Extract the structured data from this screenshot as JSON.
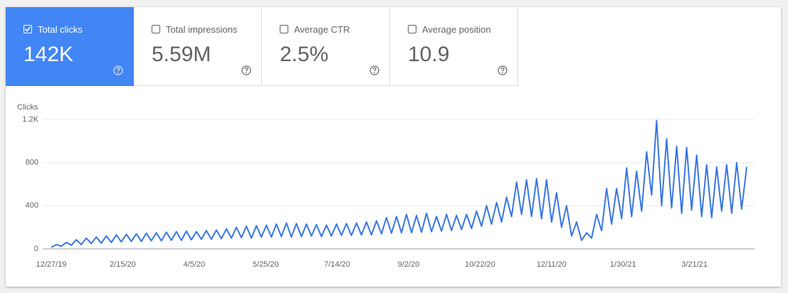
{
  "metrics": [
    {
      "label": "Total clicks",
      "value": "142K",
      "selected": true,
      "color": "#4285f4"
    },
    {
      "label": "Total impressions",
      "value": "5.59M",
      "selected": false
    },
    {
      "label": "Average CTR",
      "value": "2.5%",
      "selected": false
    },
    {
      "label": "Average position",
      "value": "10.9",
      "selected": false
    }
  ],
  "chart_data": {
    "type": "line",
    "ylabel": "Clicks",
    "color": "#3a76e0",
    "grid": true,
    "x": [
      0,
      3.5,
      7,
      10.5,
      14,
      17.5,
      21,
      24.5,
      28,
      31.5,
      35,
      38.5,
      42,
      45.5,
      49,
      52.5,
      56,
      59.5,
      63,
      66.5,
      70,
      73.5,
      77,
      80.5,
      84,
      87.5,
      91,
      94.5,
      98,
      101.5,
      105,
      108.5,
      112,
      115.5,
      119,
      122.5,
      126,
      129.5,
      133,
      136.5,
      140,
      143.5,
      147,
      150.5,
      154,
      157.5,
      161,
      164.5,
      168,
      171.5,
      175,
      178.5,
      182,
      185.5,
      189,
      192.5,
      196,
      199.5,
      203,
      206.5,
      210,
      213.5,
      217,
      220.5,
      224,
      227.5,
      231,
      234.5,
      238,
      241.5,
      245,
      248.5,
      252,
      255.5,
      259,
      262.5,
      266,
      269.5,
      273,
      276.5,
      280,
      283.5,
      287,
      290.5,
      294,
      297.5,
      301,
      304.5,
      308,
      311.5,
      315,
      318.5,
      322,
      325.5,
      329,
      332.5,
      336,
      339.5,
      343,
      346.5,
      350,
      353.5,
      357,
      360.5,
      364,
      367.5,
      371,
      374.5,
      378,
      381.5,
      385,
      388.5,
      392,
      395.5,
      399,
      402.5,
      406,
      409.5,
      413,
      416.5,
      420,
      423.5,
      427,
      430.5,
      434,
      437.5,
      441,
      444.5,
      448,
      451.5,
      455,
      458.5,
      462,
      465.5,
      469,
      472.5,
      476,
      479.5,
      483,
      486.5
    ],
    "values": [
      15,
      40,
      25,
      60,
      35,
      85,
      40,
      100,
      50,
      110,
      55,
      120,
      60,
      130,
      65,
      135,
      70,
      140,
      70,
      145,
      75,
      150,
      75,
      155,
      80,
      160,
      80,
      165,
      85,
      160,
      90,
      170,
      90,
      175,
      95,
      185,
      100,
      200,
      105,
      210,
      100,
      215,
      110,
      220,
      110,
      230,
      115,
      240,
      110,
      235,
      115,
      230,
      120,
      225,
      115,
      220,
      120,
      230,
      125,
      235,
      125,
      240,
      130,
      250,
      130,
      260,
      140,
      290,
      145,
      300,
      150,
      320,
      150,
      310,
      155,
      330,
      160,
      300,
      165,
      320,
      170,
      310,
      180,
      320,
      190,
      350,
      210,
      400,
      230,
      430,
      250,
      480,
      300,
      620,
      320,
      640,
      300,
      650,
      280,
      640,
      250,
      520,
      200,
      400,
      120,
      250,
      80,
      150,
      100,
      320,
      170,
      560,
      230,
      560,
      280,
      750,
      300,
      720,
      350,
      900,
      500,
      1190,
      400,
      1020,
      380,
      950,
      330,
      940,
      360,
      870,
      300,
      780,
      290,
      760,
      350,
      780,
      330,
      800,
      370,
      760
    ],
    "xlim": [
      -6,
      492
    ],
    "ylim": [
      0,
      1200
    ],
    "yticks": [
      0,
      400,
      800,
      {
        "value": 1200,
        "label": "1.2K"
      }
    ],
    "xticks": [
      {
        "value": 0,
        "label": "12/27/19"
      },
      {
        "value": 50,
        "label": "2/15/20"
      },
      {
        "value": 100,
        "label": "4/5/20"
      },
      {
        "value": 150,
        "label": "5/25/20"
      },
      {
        "value": 200,
        "label": "7/14/20"
      },
      {
        "value": 250,
        "label": "9/2/20"
      },
      {
        "value": 300,
        "label": "10/22/20"
      },
      {
        "value": 350,
        "label": "12/11/20"
      },
      {
        "value": 400,
        "label": "1/30/21"
      },
      {
        "value": 450,
        "label": "3/21/21"
      }
    ]
  }
}
